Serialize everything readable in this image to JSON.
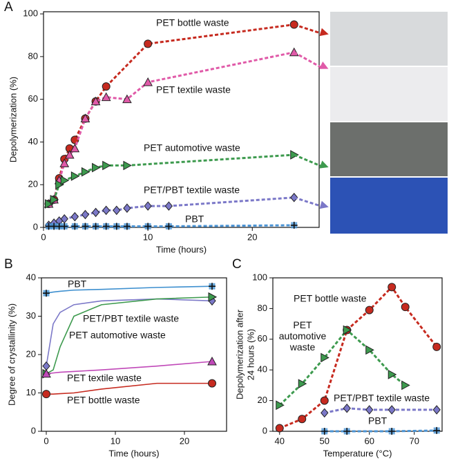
{
  "chart_data": [
    {
      "type": "line",
      "label": "A",
      "xlabel": "Time (hours)",
      "ylabel": "Depolymerization (%)",
      "xlim": [
        0,
        26.4
      ],
      "ylim": [
        0,
        101
      ],
      "xticks": [
        0,
        10,
        20
      ],
      "yticks": [
        0,
        20,
        40,
        60,
        80,
        100
      ],
      "line_style": "dashed",
      "series": [
        {
          "name": "PET bottle waste",
          "color": "#c62a1f",
          "marker": "circle",
          "x": [
            0.5,
            1,
            1.5,
            2,
            2.5,
            3,
            4,
            5,
            6,
            10,
            24
          ],
          "values": [
            11,
            13,
            23,
            32,
            37,
            41,
            51,
            59,
            66,
            86,
            95
          ]
        },
        {
          "name": "PET textile waste",
          "color": "#e05aa8",
          "marker": "triangle",
          "x": [
            0.5,
            1,
            1.5,
            2,
            2.5,
            3,
            4,
            5,
            6,
            8,
            10,
            24
          ],
          "values": [
            11,
            13,
            22,
            30,
            34,
            37,
            51,
            59,
            61,
            60,
            68,
            82
          ]
        },
        {
          "name": "PET automotive waste",
          "color": "#3d9a4e",
          "marker": "triangle-right",
          "x": [
            0.5,
            1,
            1.5,
            2,
            3,
            4,
            5,
            6,
            8,
            24
          ],
          "values": [
            11,
            13,
            20,
            22,
            24,
            26,
            28,
            29,
            29,
            34
          ]
        },
        {
          "name": "PET/PBT textile waste",
          "color": "#7b78c8",
          "marker": "diamond",
          "x": [
            0.5,
            1,
            1.5,
            2,
            3,
            4,
            5,
            6,
            7,
            8,
            10,
            12,
            24
          ],
          "values": [
            1,
            2,
            3,
            4,
            5,
            6,
            7,
            8,
            8,
            9,
            10,
            10,
            14
          ]
        },
        {
          "name": "PBT",
          "color": "#4a93d4",
          "marker": "plus",
          "x": [
            0.5,
            1,
            1.5,
            2,
            3,
            4,
            5,
            6,
            7,
            8,
            10,
            12,
            24
          ],
          "values": [
            0.5,
            0.5,
            0.5,
            0.5,
            0.5,
            0.5,
            0.5,
            0.5,
            0.5,
            0.5,
            0.5,
            0.5,
            1
          ]
        }
      ]
    },
    {
      "type": "line",
      "label": "B",
      "xlabel": "Time (hours)",
      "ylabel": "Degree of crystallinity (%)",
      "xlim": [
        -0.7,
        26.1
      ],
      "ylim": [
        0,
        40
      ],
      "xticks": [
        0,
        10,
        20
      ],
      "yticks": [
        0,
        10,
        20,
        30,
        40
      ],
      "line_style": "solid",
      "series": [
        {
          "name": "PBT",
          "color": "#3d8fcf",
          "marker": "plus",
          "x": [
            0,
            1,
            2,
            4,
            8,
            16,
            24
          ],
          "values": [
            36,
            36.3,
            36.5,
            36.8,
            37,
            37.5,
            37.8
          ]
        },
        {
          "name": "PET/PBT textile waste",
          "color": "#7b78c8",
          "marker": "diamond",
          "x": [
            0,
            1,
            2,
            4,
            8,
            16,
            24
          ],
          "values": [
            17,
            28,
            31,
            33,
            34,
            34.5,
            34
          ]
        },
        {
          "name": "PET automotive waste",
          "color": "#3d9a4e",
          "marker": "triangle-right",
          "x": [
            0,
            1,
            2,
            4,
            8,
            16,
            24
          ],
          "values": [
            15,
            16,
            22,
            30,
            33,
            34.5,
            35
          ]
        },
        {
          "name": "PET textile waste",
          "color": "#c048b8",
          "marker": "triangle",
          "x": [
            0,
            1,
            2,
            4,
            8,
            16,
            24
          ],
          "values": [
            15,
            15.2,
            15.4,
            15.6,
            16,
            17,
            18.2
          ]
        },
        {
          "name": "PET bottle waste",
          "color": "#c62a1f",
          "marker": "circle",
          "x": [
            0,
            1,
            2,
            4,
            8,
            16,
            24
          ],
          "values": [
            9.7,
            9.7,
            9.8,
            10,
            11,
            12.5,
            12.5
          ]
        }
      ]
    },
    {
      "type": "line",
      "label": "C",
      "xlabel": "Temperature (°C)",
      "ylabel": [
        "Depolymerization after",
        "24 hours (%)"
      ],
      "xlim": [
        38.5,
        76.2
      ],
      "ylim": [
        0,
        100
      ],
      "xticks": [
        40,
        50,
        60,
        70
      ],
      "yticks": [
        0,
        20,
        40,
        60,
        80,
        100
      ],
      "line_style": "dashed",
      "series": [
        {
          "name": "PET bottle waste",
          "color": "#c62a1f",
          "marker": "circle",
          "x": [
            40,
            45,
            50,
            55,
            60,
            65,
            68,
            75
          ],
          "values": [
            2,
            8,
            20,
            66,
            79,
            94,
            81,
            55
          ]
        },
        {
          "name": "PET automotive waste",
          "color": "#3d9a4e",
          "marker": "triangle-right",
          "x": [
            40,
            45,
            50,
            55,
            60,
            65,
            68
          ],
          "values": [
            17,
            31,
            48,
            66,
            53,
            37,
            30
          ]
        },
        {
          "name": "PET/PBT textile waste",
          "color": "#7b78c8",
          "marker": "diamond",
          "x": [
            50,
            55,
            60,
            65,
            75
          ],
          "values": [
            12,
            15,
            14,
            14,
            14
          ]
        },
        {
          "name": "PBT",
          "color": "#4a93d4",
          "marker": "plus",
          "x": [
            50,
            55,
            65,
            75
          ],
          "values": [
            0,
            0,
            0,
            0.5
          ]
        }
      ]
    }
  ]
}
